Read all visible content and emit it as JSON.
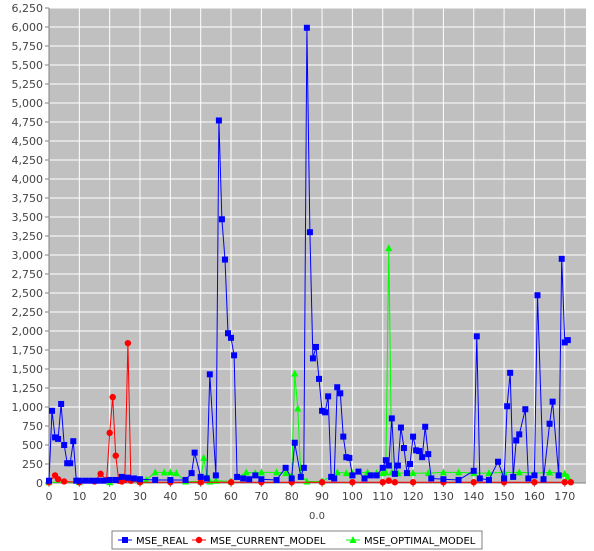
{
  "chart_data": {
    "type": "line",
    "xlabel": "0.0",
    "ylabel": "",
    "xlim": [
      0,
      177
    ],
    "ylim": [
      0,
      6250
    ],
    "x_ticks": [
      0,
      10,
      20,
      30,
      40,
      50,
      60,
      70,
      80,
      90,
      100,
      110,
      120,
      130,
      140,
      150,
      160,
      170
    ],
    "y_ticks": [
      0,
      250,
      500,
      750,
      1000,
      1250,
      1500,
      1750,
      2000,
      2250,
      2500,
      2750,
      3000,
      3250,
      3500,
      3750,
      4000,
      4250,
      4500,
      4750,
      5000,
      5250,
      5500,
      5750,
      6000,
      6250
    ],
    "y_tick_labels": [
      "0",
      "250",
      "500",
      "750",
      "1,000",
      "1,250",
      "1,500",
      "1,750",
      "2,000",
      "2,250",
      "2,500",
      "2,750",
      "3,000",
      "3,250",
      "3,500",
      "3,750",
      "4,000",
      "4,250",
      "4,500",
      "4,750",
      "5,000",
      "5,250",
      "5,500",
      "5,750",
      "6,000",
      "6,250"
    ],
    "legend_position": "bottom",
    "grid": true,
    "colors": {
      "plot_bg": "#c0c0c0",
      "grid": "#ffffff",
      "MSE_REAL": "#0000ff",
      "MSE_CURRENT_MODEL": "#ff0000",
      "MSE_OPTIMAL_MODEL": "#00ff00"
    },
    "series": [
      {
        "name": "MSE_REAL",
        "marker": "square",
        "points": [
          [
            0,
            30
          ],
          [
            1,
            950
          ],
          [
            2,
            600
          ],
          [
            3,
            580
          ],
          [
            4,
            1040
          ],
          [
            5,
            500
          ],
          [
            6,
            260
          ],
          [
            7,
            260
          ],
          [
            8,
            550
          ],
          [
            9,
            30
          ],
          [
            10,
            30
          ],
          [
            12,
            30
          ],
          [
            14,
            30
          ],
          [
            16,
            30
          ],
          [
            18,
            30
          ],
          [
            20,
            40
          ],
          [
            22,
            40
          ],
          [
            24,
            80
          ],
          [
            26,
            70
          ],
          [
            28,
            60
          ],
          [
            30,
            50
          ],
          [
            35,
            40
          ],
          [
            40,
            40
          ],
          [
            45,
            40
          ],
          [
            47,
            130
          ],
          [
            48,
            400
          ],
          [
            50,
            80
          ],
          [
            52,
            60
          ],
          [
            53,
            1430
          ],
          [
            55,
            100
          ],
          [
            56,
            4770
          ],
          [
            57,
            3470
          ],
          [
            58,
            2940
          ],
          [
            59,
            1970
          ],
          [
            60,
            1910
          ],
          [
            61,
            1680
          ],
          [
            62,
            80
          ],
          [
            64,
            60
          ],
          [
            66,
            50
          ],
          [
            68,
            100
          ],
          [
            70,
            50
          ],
          [
            75,
            40
          ],
          [
            78,
            200
          ],
          [
            80,
            60
          ],
          [
            81,
            530
          ],
          [
            83,
            80
          ],
          [
            84,
            200
          ],
          [
            85,
            5990
          ],
          [
            86,
            3300
          ],
          [
            87,
            1640
          ],
          [
            88,
            1790
          ],
          [
            89,
            1370
          ],
          [
            90,
            950
          ],
          [
            91,
            930
          ],
          [
            92,
            1140
          ],
          [
            93,
            80
          ],
          [
            94,
            60
          ],
          [
            95,
            1260
          ],
          [
            96,
            1180
          ],
          [
            97,
            610
          ],
          [
            98,
            340
          ],
          [
            99,
            330
          ],
          [
            100,
            100
          ],
          [
            102,
            150
          ],
          [
            104,
            60
          ],
          [
            106,
            100
          ],
          [
            108,
            100
          ],
          [
            110,
            200
          ],
          [
            111,
            300
          ],
          [
            112,
            230
          ],
          [
            113,
            850
          ],
          [
            114,
            120
          ],
          [
            115,
            230
          ],
          [
            116,
            730
          ],
          [
            117,
            460
          ],
          [
            118,
            130
          ],
          [
            119,
            250
          ],
          [
            120,
            610
          ],
          [
            121,
            430
          ],
          [
            122,
            420
          ],
          [
            123,
            340
          ],
          [
            124,
            740
          ],
          [
            125,
            380
          ],
          [
            126,
            60
          ],
          [
            130,
            50
          ],
          [
            135,
            40
          ],
          [
            140,
            160
          ],
          [
            141,
            1930
          ],
          [
            142,
            60
          ],
          [
            145,
            40
          ],
          [
            148,
            280
          ],
          [
            150,
            60
          ],
          [
            151,
            1010
          ],
          [
            152,
            1450
          ],
          [
            153,
            80
          ],
          [
            154,
            560
          ],
          [
            155,
            640
          ],
          [
            157,
            970
          ],
          [
            158,
            60
          ],
          [
            160,
            100
          ],
          [
            161,
            2470
          ],
          [
            163,
            50
          ],
          [
            165,
            780
          ],
          [
            166,
            1070
          ],
          [
            168,
            100
          ],
          [
            169,
            2950
          ],
          [
            170,
            1850
          ],
          [
            171,
            1880
          ]
        ]
      },
      {
        "name": "MSE_CURRENT_MODEL",
        "marker": "circle",
        "points": [
          [
            0,
            10
          ],
          [
            2,
            100
          ],
          [
            3,
            50
          ],
          [
            5,
            20
          ],
          [
            10,
            10
          ],
          [
            15,
            20
          ],
          [
            17,
            120
          ],
          [
            19,
            40
          ],
          [
            20,
            660
          ],
          [
            21,
            1130
          ],
          [
            22,
            360
          ],
          [
            23,
            30
          ],
          [
            24,
            20
          ],
          [
            25,
            40
          ],
          [
            26,
            1840
          ],
          [
            27,
            30
          ],
          [
            30,
            10
          ],
          [
            40,
            10
          ],
          [
            50,
            10
          ],
          [
            60,
            10
          ],
          [
            70,
            10
          ],
          [
            80,
            10
          ],
          [
            90,
            10
          ],
          [
            100,
            10
          ],
          [
            110,
            10
          ],
          [
            112,
            30
          ],
          [
            114,
            10
          ],
          [
            120,
            10
          ],
          [
            130,
            10
          ],
          [
            140,
            10
          ],
          [
            150,
            10
          ],
          [
            160,
            10
          ],
          [
            170,
            10
          ],
          [
            172,
            10
          ]
        ]
      },
      {
        "name": "MSE_OPTIMAL_MODEL",
        "marker": "triangle",
        "points": [
          [
            0,
            10
          ],
          [
            10,
            10
          ],
          [
            20,
            10
          ],
          [
            30,
            20
          ],
          [
            32,
            40
          ],
          [
            35,
            140
          ],
          [
            38,
            140
          ],
          [
            40,
            140
          ],
          [
            42,
            130
          ],
          [
            45,
            20
          ],
          [
            50,
            20
          ],
          [
            51,
            330
          ],
          [
            52,
            100
          ],
          [
            53,
            20
          ],
          [
            55,
            30
          ],
          [
            60,
            20
          ],
          [
            65,
            140
          ],
          [
            68,
            130
          ],
          [
            70,
            140
          ],
          [
            75,
            140
          ],
          [
            78,
            130
          ],
          [
            80,
            100
          ],
          [
            81,
            1440
          ],
          [
            82,
            980
          ],
          [
            83,
            100
          ],
          [
            85,
            20
          ],
          [
            90,
            20
          ],
          [
            95,
            140
          ],
          [
            98,
            130
          ],
          [
            100,
            130
          ],
          [
            105,
            140
          ],
          [
            108,
            130
          ],
          [
            110,
            130
          ],
          [
            111,
            140
          ],
          [
            112,
            3090
          ],
          [
            113,
            140
          ],
          [
            115,
            130
          ],
          [
            120,
            130
          ],
          [
            125,
            130
          ],
          [
            130,
            140
          ],
          [
            135,
            140
          ],
          [
            140,
            130
          ],
          [
            145,
            130
          ],
          [
            150,
            140
          ],
          [
            155,
            140
          ],
          [
            160,
            130
          ],
          [
            165,
            140
          ],
          [
            168,
            130
          ],
          [
            170,
            120
          ],
          [
            171,
            80
          ]
        ]
      }
    ]
  }
}
